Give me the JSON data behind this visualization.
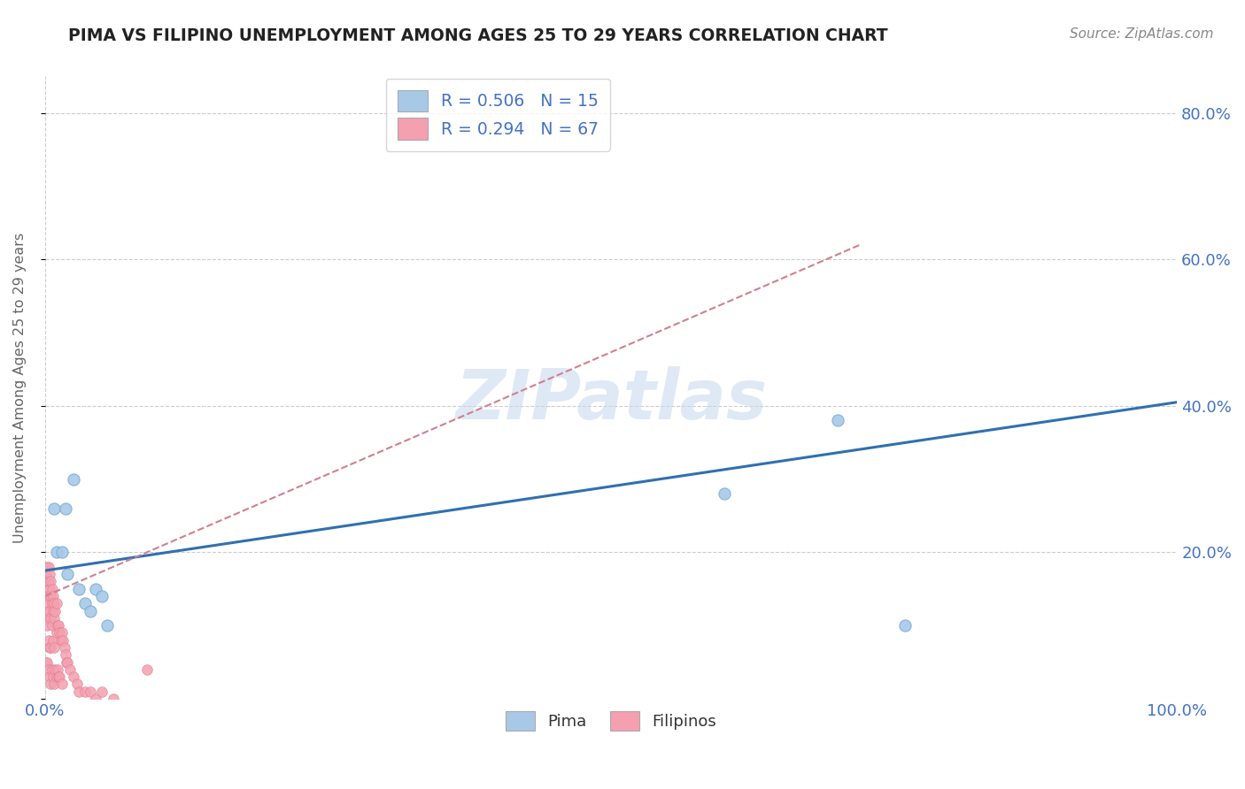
{
  "title": "PIMA VS FILIPINO UNEMPLOYMENT AMONG AGES 25 TO 29 YEARS CORRELATION CHART",
  "source": "Source: ZipAtlas.com",
  "ylabel": "Unemployment Among Ages 25 to 29 years",
  "xlim": [
    0,
    1.0
  ],
  "ylim": [
    0,
    0.85
  ],
  "background_color": "#ffffff",
  "grid_color": "#cccccc",
  "pima_color": "#a8c8e8",
  "pima_edge_color": "#7aafd4",
  "filipino_color": "#f4a0b0",
  "filipino_edge_color": "#e08090",
  "pima_line_color": "#3070b0",
  "filipino_line_color": "#d08090",
  "label_color": "#4472c4",
  "title_color": "#222222",
  "source_color": "#888888",
  "ylabel_color": "#666666",
  "legend_pima_R": "0.506",
  "legend_pima_N": "15",
  "legend_filipino_R": "0.294",
  "legend_filipino_N": "67",
  "watermark": "ZIPatlas",
  "pima_points_x": [
    0.008,
    0.01,
    0.015,
    0.018,
    0.02,
    0.025,
    0.03,
    0.035,
    0.04,
    0.045,
    0.05,
    0.055,
    0.6,
    0.7,
    0.76
  ],
  "pima_points_y": [
    0.26,
    0.2,
    0.2,
    0.26,
    0.17,
    0.3,
    0.15,
    0.13,
    0.12,
    0.15,
    0.14,
    0.1,
    0.28,
    0.38,
    0.1
  ],
  "filipino_points_x": [
    0.001,
    0.001,
    0.001,
    0.001,
    0.001,
    0.002,
    0.002,
    0.002,
    0.002,
    0.002,
    0.002,
    0.003,
    0.003,
    0.003,
    0.003,
    0.003,
    0.004,
    0.004,
    0.004,
    0.004,
    0.004,
    0.005,
    0.005,
    0.005,
    0.005,
    0.005,
    0.006,
    0.006,
    0.006,
    0.006,
    0.007,
    0.007,
    0.007,
    0.007,
    0.008,
    0.008,
    0.008,
    0.008,
    0.009,
    0.009,
    0.01,
    0.01,
    0.01,
    0.011,
    0.011,
    0.012,
    0.012,
    0.013,
    0.013,
    0.014,
    0.015,
    0.015,
    0.016,
    0.017,
    0.018,
    0.019,
    0.02,
    0.022,
    0.025,
    0.028,
    0.03,
    0.035,
    0.04,
    0.045,
    0.05,
    0.06,
    0.09
  ],
  "filipino_points_y": [
    0.17,
    0.16,
    0.14,
    0.11,
    0.05,
    0.18,
    0.16,
    0.14,
    0.12,
    0.1,
    0.05,
    0.18,
    0.16,
    0.13,
    0.08,
    0.04,
    0.17,
    0.15,
    0.12,
    0.07,
    0.03,
    0.16,
    0.14,
    0.11,
    0.07,
    0.02,
    0.15,
    0.13,
    0.1,
    0.04,
    0.14,
    0.12,
    0.08,
    0.03,
    0.13,
    0.11,
    0.07,
    0.02,
    0.12,
    0.04,
    0.13,
    0.09,
    0.03,
    0.1,
    0.04,
    0.1,
    0.03,
    0.09,
    0.03,
    0.08,
    0.09,
    0.02,
    0.08,
    0.07,
    0.06,
    0.05,
    0.05,
    0.04,
    0.03,
    0.02,
    0.01,
    0.01,
    0.01,
    0.0,
    0.01,
    0.0,
    0.04
  ],
  "pima_trendline_x": [
    0.0,
    1.0
  ],
  "pima_trendline_y": [
    0.175,
    0.405
  ],
  "filipino_trendline_x": [
    0.0,
    0.72
  ],
  "filipino_trendline_y": [
    0.14,
    0.62
  ]
}
